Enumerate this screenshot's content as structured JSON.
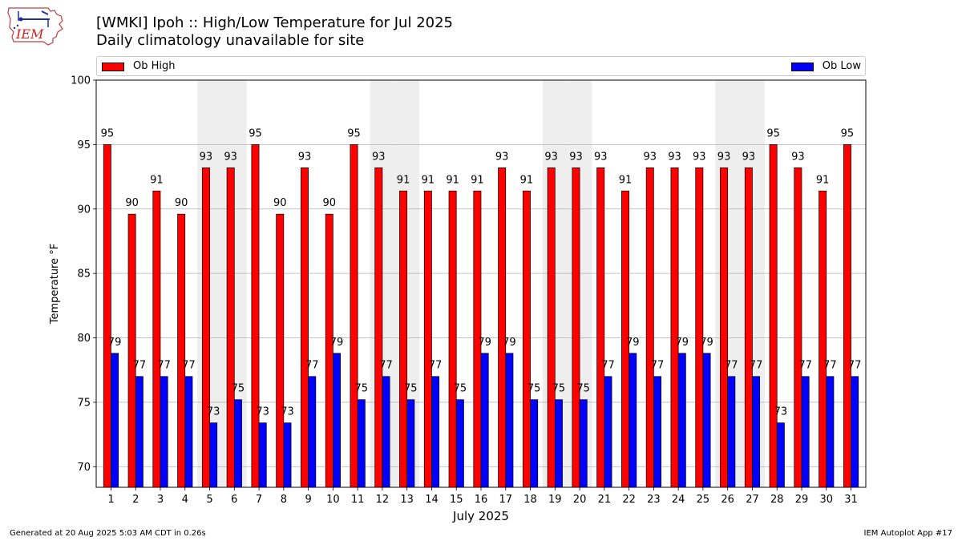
{
  "header": {
    "title_line1": "[WMKI] Ipoh :: High/Low Temperature for Jul 2025",
    "title_line2": "Daily climatology unavailable for site",
    "logo_text": "IEM"
  },
  "footer": {
    "generated": "Generated at 20 Aug 2025 5:03 AM CDT in 0.26s",
    "app": "IEM Autoplot App #17"
  },
  "colors": {
    "high": "#ff0000",
    "low": "#0000ff",
    "weekend_shade": "#eeeeee",
    "grid": "#b0b0b0"
  },
  "chart_data": {
    "type": "bar",
    "xlabel": "July 2025",
    "ylabel": "Temperature °F",
    "ylim": [
      68.4,
      100
    ],
    "yticks": [
      70,
      75,
      80,
      85,
      90,
      95,
      100
    ],
    "grid": "horizontal",
    "legend_placement": "top",
    "categories": [
      "1",
      "2",
      "3",
      "4",
      "5",
      "6",
      "7",
      "8",
      "9",
      "10",
      "11",
      "12",
      "13",
      "14",
      "15",
      "16",
      "17",
      "18",
      "19",
      "20",
      "21",
      "22",
      "23",
      "24",
      "25",
      "26",
      "27",
      "28",
      "29",
      "30",
      "31"
    ],
    "shaded_days": [
      5,
      6,
      12,
      13,
      19,
      20,
      26,
      27
    ],
    "series": [
      {
        "name": "Ob High",
        "values": [
          95,
          90,
          91,
          90,
          93,
          93,
          95,
          90,
          93,
          90,
          95,
          93,
          91,
          91,
          91,
          91,
          93,
          91,
          93,
          93,
          93,
          91,
          93,
          93,
          93,
          93,
          93,
          95,
          93,
          91,
          95
        ],
        "plotted": [
          95,
          89.6,
          91.4,
          89.6,
          93.2,
          93.2,
          95,
          89.6,
          93.2,
          89.6,
          95,
          93.2,
          91.4,
          91.4,
          91.4,
          91.4,
          93.2,
          91.4,
          93.2,
          93.2,
          93.2,
          91.4,
          93.2,
          93.2,
          93.2,
          93.2,
          93.2,
          95,
          93.2,
          91.4,
          95
        ]
      },
      {
        "name": "Ob Low",
        "values": [
          79,
          77,
          77,
          77,
          73,
          75,
          73,
          73,
          77,
          79,
          75,
          77,
          75,
          77,
          75,
          79,
          79,
          75,
          75,
          75,
          77,
          79,
          77,
          79,
          79,
          77,
          77,
          73,
          77,
          77,
          77
        ],
        "plotted": [
          78.8,
          77,
          77,
          77,
          73.4,
          75.2,
          73.4,
          73.4,
          77,
          78.8,
          75.2,
          77,
          75.2,
          77,
          75.2,
          78.8,
          78.8,
          75.2,
          75.2,
          75.2,
          77,
          78.8,
          77,
          78.8,
          78.8,
          77,
          77,
          73.4,
          77,
          77,
          77
        ]
      }
    ]
  }
}
